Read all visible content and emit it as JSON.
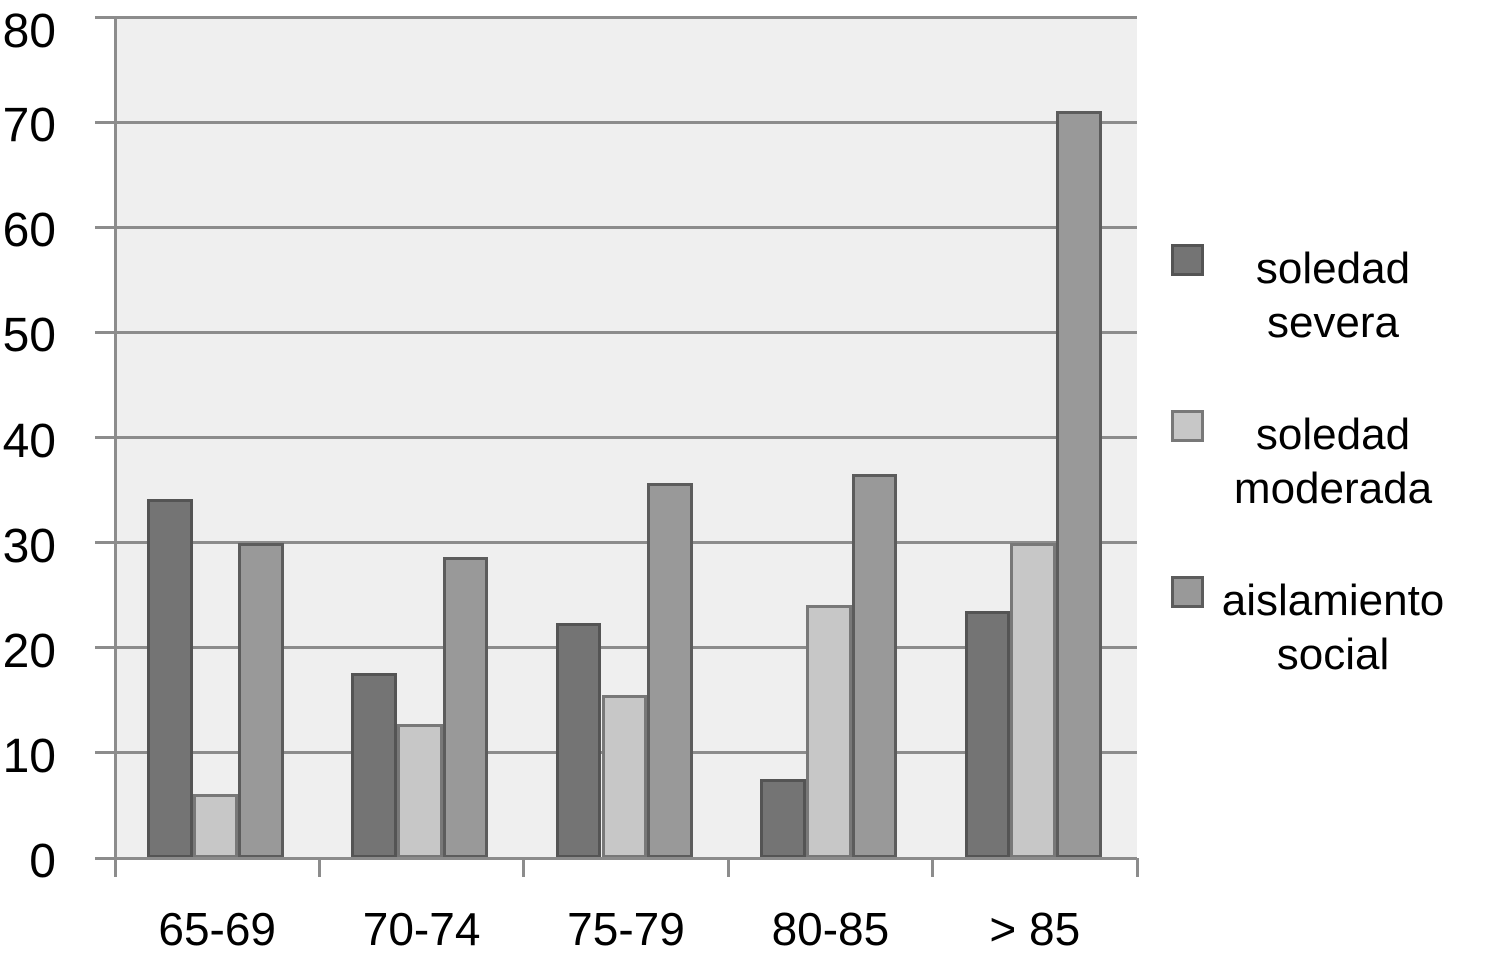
{
  "chart_data": {
    "type": "bar",
    "categories": [
      "65-69",
      "70-74",
      "75-79",
      "80-85",
      "> 85"
    ],
    "series": [
      {
        "name": "soledad severa",
        "values": [
          34.0,
          17.5,
          22.2,
          7.4,
          23.4
        ],
        "fill": "#747474",
        "border": "#545454"
      },
      {
        "name": "soledad moderada",
        "values": [
          5.9,
          12.6,
          15.4,
          23.9,
          29.8
        ],
        "fill": "#c7c7c7",
        "border": "#787878"
      },
      {
        "name": "aislamiento social",
        "values": [
          29.8,
          28.5,
          35.5,
          36.4,
          70.9
        ],
        "fill": "#999999",
        "border": "#5c5c5c"
      }
    ],
    "title": "",
    "xlabel": "",
    "ylabel": "",
    "ylim": [
      0,
      80
    ],
    "y_ticks": [
      0,
      10,
      20,
      30,
      40,
      50,
      60,
      70,
      80
    ],
    "grid": true,
    "legend_position": "right"
  },
  "legend": {
    "items": [
      {
        "lines": [
          "soledad",
          "severa"
        ],
        "fill": "#747474",
        "border": "#545454"
      },
      {
        "lines": [
          "soledad",
          "moderada"
        ],
        "fill": "#c7c7c7",
        "border": "#787878"
      },
      {
        "lines": [
          "aislamiento",
          "social"
        ],
        "fill": "#999999",
        "border": "#5c5c5c"
      }
    ]
  },
  "colors": {
    "page_background": "#ffffff",
    "plot_background": "#efefef",
    "gridline": "#8c8c8c",
    "axis": "#8c8c8c",
    "text": "#000000"
  }
}
